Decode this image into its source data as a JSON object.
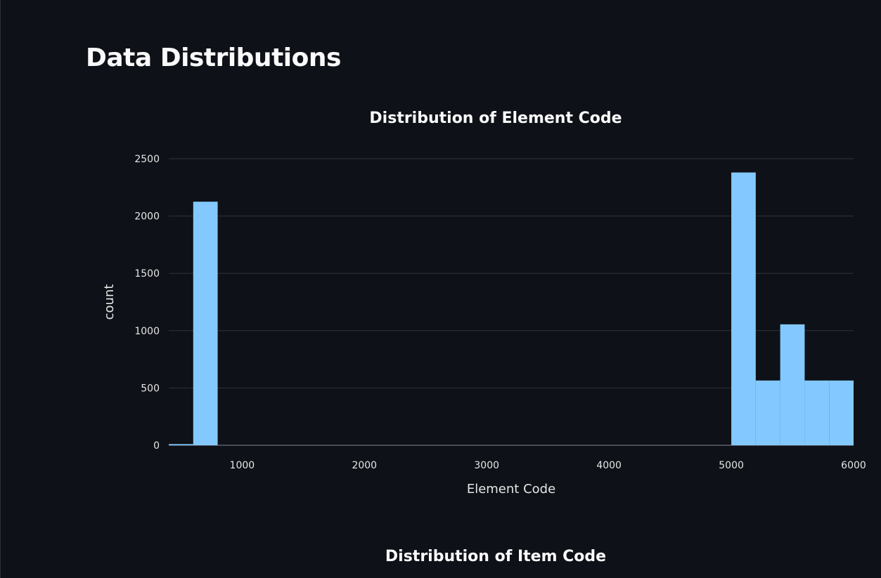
{
  "page": {
    "title": "Data Distributions"
  },
  "colors": {
    "background": "#0e1117",
    "bar": "#83c9ff",
    "grid": "#31333f",
    "text": "#fafafa"
  },
  "chart_data": [
    {
      "type": "bar",
      "title": "Distribution of Element Code",
      "xlabel": "Element Code",
      "ylabel": "count",
      "xlim": [
        400,
        6000
      ],
      "ylim": [
        0,
        2500
      ],
      "x_ticks": [
        1000,
        2000,
        3000,
        4000,
        5000,
        6000
      ],
      "y_ticks": [
        0,
        500,
        1000,
        1500,
        2000,
        2500
      ],
      "grid": true,
      "bin_width": 200,
      "bins": [
        {
          "start": 400,
          "end": 600,
          "count": 10
        },
        {
          "start": 600,
          "end": 800,
          "count": 2125
        },
        {
          "start": 5000,
          "end": 5200,
          "count": 2380
        },
        {
          "start": 5200,
          "end": 5400,
          "count": 565
        },
        {
          "start": 5400,
          "end": 5600,
          "count": 1055
        },
        {
          "start": 5600,
          "end": 5800,
          "count": 565
        },
        {
          "start": 5800,
          "end": 6000,
          "count": 565
        }
      ]
    },
    {
      "type": "bar",
      "title": "Distribution of Item Code"
    }
  ]
}
